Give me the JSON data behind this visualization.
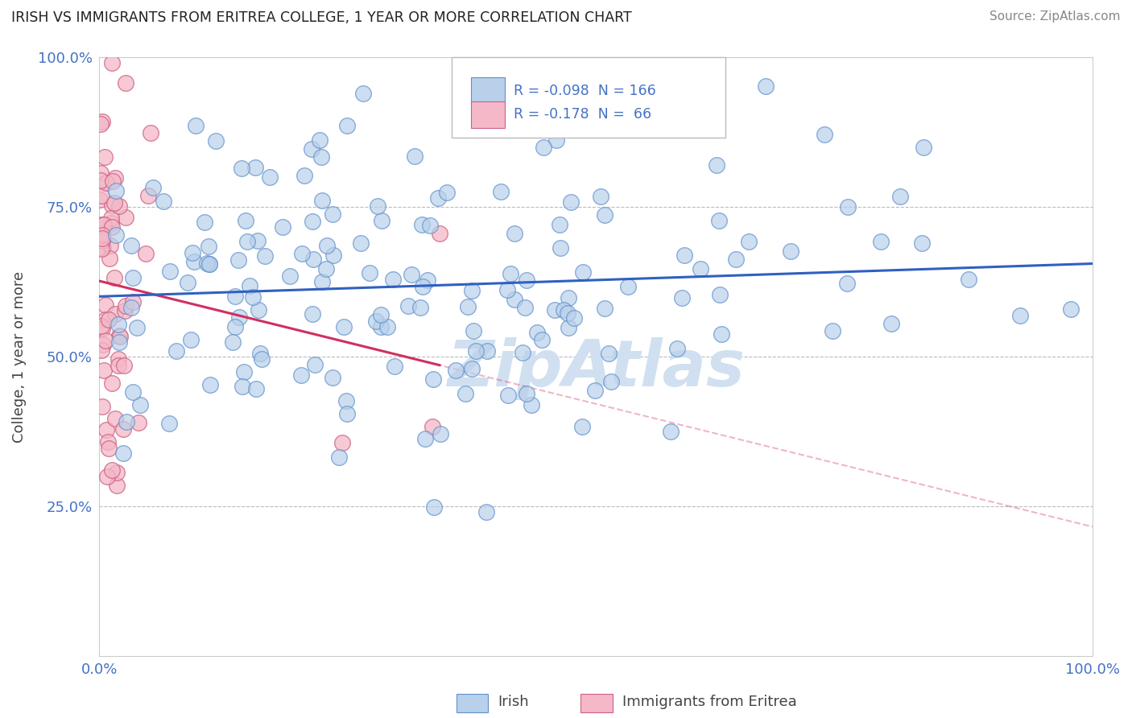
{
  "title": "IRISH VS IMMIGRANTS FROM ERITREA COLLEGE, 1 YEAR OR MORE CORRELATION CHART",
  "source": "Source: ZipAtlas.com",
  "ylabel": "College, 1 year or more",
  "xlim": [
    0.0,
    1.0
  ],
  "ylim": [
    0.0,
    1.0
  ],
  "legend_irish_R": "-0.098",
  "legend_irish_N": "166",
  "legend_eritrea_R": "-0.178",
  "legend_eritrea_N": "66",
  "irish_color": "#b8d0ea",
  "eritrea_color": "#f4b8c8",
  "irish_line_color": "#3060c0",
  "eritrea_line_color": "#d03060",
  "irish_edge_color": "#6090cc",
  "eritrea_edge_color": "#cc6080",
  "title_color": "#222222",
  "axis_label_color": "#444444",
  "tick_label_color": "#4472c4",
  "source_color": "#888888",
  "grid_color": "#bbbbbb",
  "watermark_color": "#d0e0f0",
  "background_color": "#ffffff",
  "irish_seed": 42,
  "eritrea_seed": 99,
  "irish_n": 166,
  "eritrea_n": 66,
  "irish_R": -0.098,
  "eritrea_R": -0.178
}
